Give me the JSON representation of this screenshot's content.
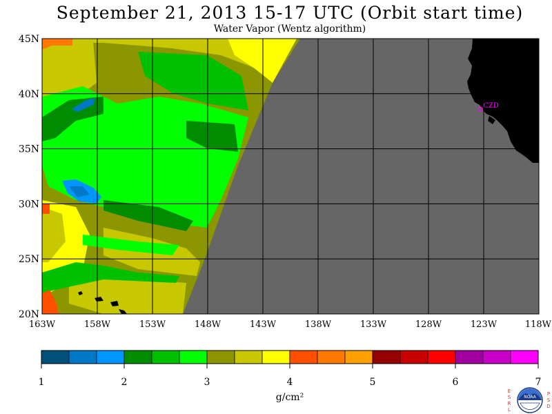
{
  "header": {
    "title": "September 21, 2013  15-17 UTC  (Orbit start time)",
    "subtitle": "Water Vapor (Wentz algorithm)"
  },
  "map": {
    "lon_range": [
      -163,
      -118
    ],
    "lat_range": [
      20,
      45
    ],
    "lat_ticks": [
      {
        "value": 45,
        "label": "45N"
      },
      {
        "value": 40,
        "label": "40N"
      },
      {
        "value": 35,
        "label": "35N"
      },
      {
        "value": 30,
        "label": "30N"
      },
      {
        "value": 25,
        "label": "25N"
      },
      {
        "value": 20,
        "label": "20N"
      }
    ],
    "lon_ticks": [
      {
        "value": -163,
        "label": "163W"
      },
      {
        "value": -158,
        "label": "158W"
      },
      {
        "value": -153,
        "label": "153W"
      },
      {
        "value": -148,
        "label": "148W"
      },
      {
        "value": -143,
        "label": "143W"
      },
      {
        "value": -138,
        "label": "138W"
      },
      {
        "value": -133,
        "label": "133W"
      },
      {
        "value": -128,
        "label": "128W"
      },
      {
        "value": -123,
        "label": "123W"
      },
      {
        "value": -118,
        "label": "118W"
      }
    ],
    "station": {
      "label": "CZD",
      "lon": -123.3,
      "lat": 38.6,
      "color": "#ff00ff"
    },
    "no_data_color": "#666666",
    "land_color": "#000000"
  },
  "colorbar": {
    "units": "g/cm²",
    "tick_labels": [
      "1",
      "2",
      "3",
      "4",
      "5",
      "6",
      "7"
    ],
    "colors": [
      "#00507a",
      "#0078c8",
      "#0096ff",
      "#008c00",
      "#00c000",
      "#00ff00",
      "#8c9600",
      "#c8c800",
      "#ffff00",
      "#ff5000",
      "#ff7800",
      "#ffa000",
      "#960000",
      "#c80000",
      "#ff0000",
      "#a000a0",
      "#c800c8",
      "#ff00ff"
    ]
  },
  "logo": {
    "text": "NOAA",
    "left_letters": [
      "E",
      "S",
      "R",
      "L"
    ],
    "right_letters": [
      "P",
      "S",
      "D"
    ]
  }
}
